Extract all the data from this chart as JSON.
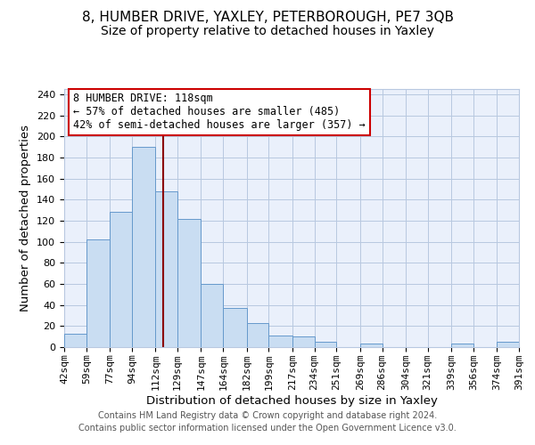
{
  "title1": "8, HUMBER DRIVE, YAXLEY, PETERBOROUGH, PE7 3QB",
  "title2": "Size of property relative to detached houses in Yaxley",
  "xlabel": "Distribution of detached houses by size in Yaxley",
  "ylabel": "Number of detached properties",
  "footer1": "Contains HM Land Registry data © Crown copyright and database right 2024.",
  "footer2": "Contains public sector information licensed under the Open Government Licence v3.0.",
  "annotation_title": "8 HUMBER DRIVE: 118sqm",
  "annotation_line1": "← 57% of detached houses are smaller (485)",
  "annotation_line2": "42% of semi-detached houses are larger (357) →",
  "property_size": 118,
  "bar_edges": [
    42,
    59,
    77,
    94,
    112,
    129,
    147,
    164,
    182,
    199,
    217,
    234,
    251,
    269,
    286,
    304,
    321,
    339,
    356,
    374,
    391
  ],
  "bar_heights": [
    13,
    102,
    128,
    190,
    148,
    122,
    60,
    37,
    23,
    11,
    10,
    5,
    0,
    3,
    0,
    0,
    0,
    3,
    0,
    5
  ],
  "bar_color": "#c9ddf2",
  "bar_edgecolor": "#6699cc",
  "red_line_x": 118,
  "ylim": [
    0,
    245
  ],
  "yticks": [
    0,
    20,
    40,
    60,
    80,
    100,
    120,
    140,
    160,
    180,
    200,
    220,
    240
  ],
  "x_labels": [
    "42sqm",
    "59sqm",
    "77sqm",
    "94sqm",
    "112sqm",
    "129sqm",
    "147sqm",
    "164sqm",
    "182sqm",
    "199sqm",
    "217sqm",
    "234sqm",
    "251sqm",
    "269sqm",
    "286sqm",
    "304sqm",
    "321sqm",
    "339sqm",
    "356sqm",
    "374sqm",
    "391sqm"
  ],
  "background_color": "#eaf0fb",
  "grid_color": "#b8c8e0",
  "title1_fontsize": 11,
  "title2_fontsize": 10,
  "axis_label_fontsize": 9.5,
  "tick_fontsize": 8,
  "footer_fontsize": 7,
  "annotation_fontsize": 8.5
}
